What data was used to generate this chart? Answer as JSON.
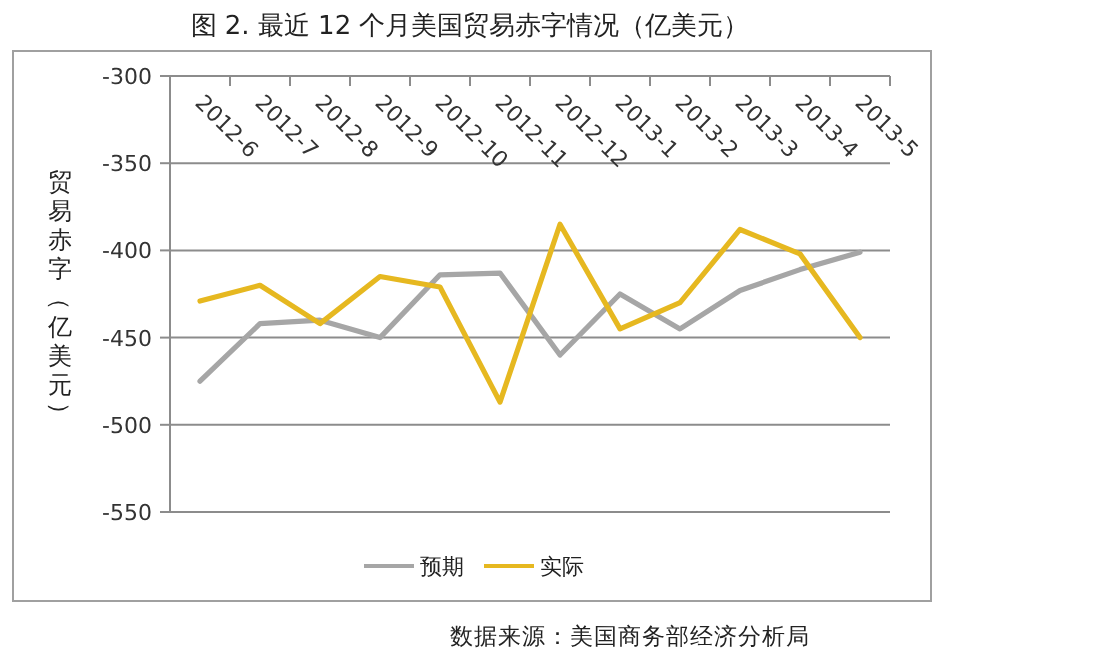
{
  "chart_data": {
    "type": "line",
    "title": "图 2. 最近 12 个月美国贸易赤字情况（亿美元）",
    "ylabel": "贸易赤字（亿美元）",
    "categories": [
      "2012-6",
      "2012-7",
      "2012-8",
      "2012-9",
      "2012-10",
      "2012-11",
      "2012-12",
      "2013-1",
      "2013-2",
      "2013-3",
      "2013-4",
      "2013-5"
    ],
    "series": [
      {
        "name": "预期",
        "color": "#a6a6a6",
        "values": [
          -475,
          -442,
          -440,
          -450,
          -414,
          -413,
          -460,
          -425,
          -445,
          -423,
          -411,
          -401
        ]
      },
      {
        "name": "实际",
        "color": "#e6b820",
        "values": [
          -429,
          -420,
          -442,
          -415,
          -421,
          -487,
          -385,
          -445,
          -430,
          -388,
          -402,
          -450
        ]
      }
    ],
    "ylim": [
      -550,
      -300
    ],
    "yticks": [
      -550,
      -500,
      -450,
      -400,
      -350,
      -300
    ],
    "grid": "y",
    "legend": "bottom",
    "annotations": [
      "数据来源：美国商务部经济分析局"
    ]
  }
}
